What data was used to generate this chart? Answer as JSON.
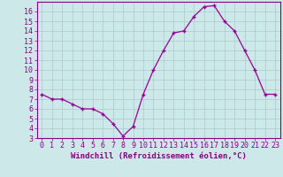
{
  "x": [
    0,
    1,
    2,
    3,
    4,
    5,
    6,
    7,
    8,
    9,
    10,
    11,
    12,
    13,
    14,
    15,
    16,
    17,
    18,
    19,
    20,
    21,
    22,
    23
  ],
  "y": [
    7.5,
    7.0,
    7.0,
    6.5,
    6.0,
    6.0,
    5.5,
    4.5,
    3.2,
    4.2,
    7.5,
    10.0,
    12.0,
    13.8,
    14.0,
    15.5,
    16.5,
    16.6,
    15.0,
    14.0,
    12.0,
    10.0,
    7.5,
    7.5
  ],
  "line_color": "#990099",
  "marker": "+",
  "markersize": 3.5,
  "linewidth": 0.9,
  "xlabel": "Windchill (Refroidissement éolien,°C)",
  "xlim": [
    -0.5,
    23.5
  ],
  "ylim": [
    3,
    17
  ],
  "yticks": [
    3,
    4,
    5,
    6,
    7,
    8,
    9,
    10,
    11,
    12,
    13,
    14,
    15,
    16
  ],
  "xticks": [
    0,
    1,
    2,
    3,
    4,
    5,
    6,
    7,
    8,
    9,
    10,
    11,
    12,
    13,
    14,
    15,
    16,
    17,
    18,
    19,
    20,
    21,
    22,
    23
  ],
  "bg_color": "#cce8e8",
  "grid_color": "#aacccc",
  "label_color": "#880088",
  "tick_color": "#880088",
  "border_color": "#880088",
  "xlabel_fontsize": 6.5,
  "tick_fontsize": 6.0
}
